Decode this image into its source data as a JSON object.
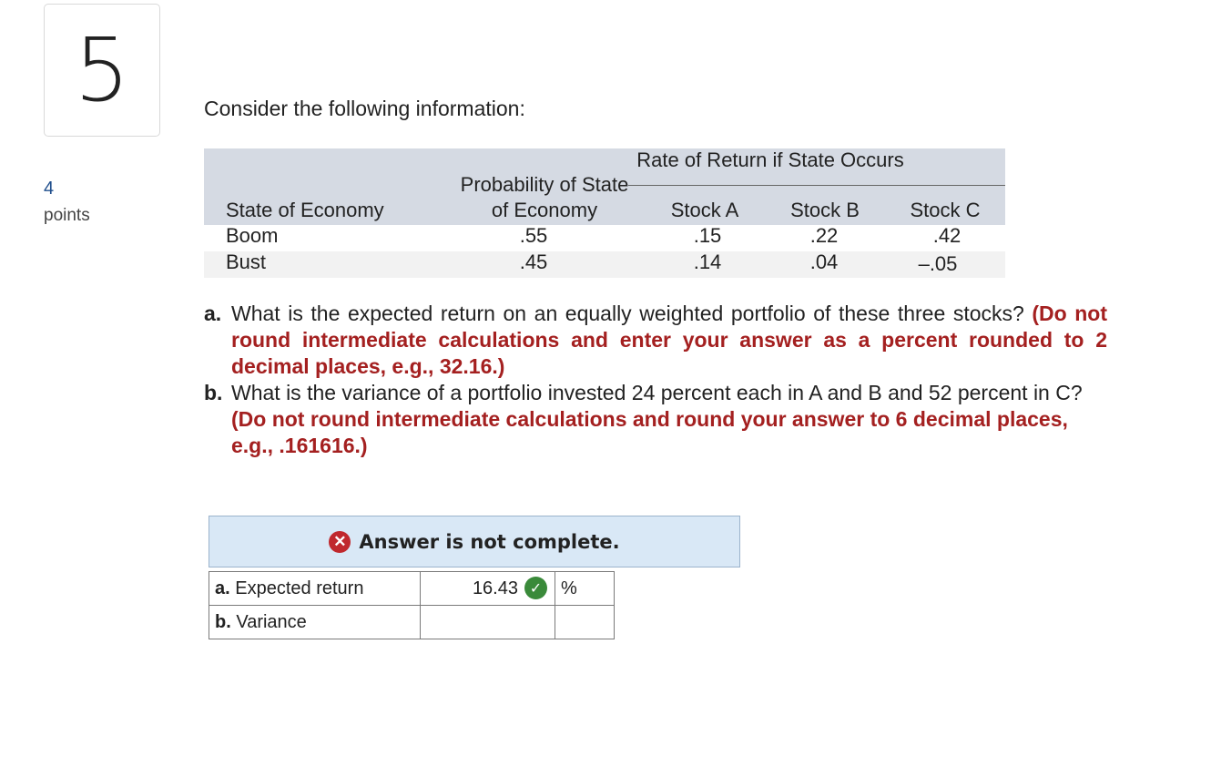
{
  "question": {
    "number": "5",
    "points_value": "4",
    "points_label": "points",
    "intro": "Consider the following information:"
  },
  "table": {
    "group_header": "Rate of Return if State Occurs",
    "col_state": "State of Economy",
    "col_prob_line1": "Probability of State",
    "col_prob_line2": "of Economy",
    "col_a": "Stock A",
    "col_b": "Stock B",
    "col_c": "Stock C",
    "rows": [
      {
        "state": "Boom",
        "prob": ".55",
        "a": ".15",
        "b": ".22",
        "c": ".42"
      },
      {
        "state": "Bust",
        "prob": ".45",
        "a": ".14",
        "b": ".04",
        "c": "–.05"
      }
    ]
  },
  "parts": {
    "a_letter": "a.",
    "a_text": "What is the expected return on an equally weighted portfolio of these three stocks?",
    "a_hint": "(Do not round intermediate calculations and enter your answer as a percent rounded to 2 decimal places, e.g., 32.16.)",
    "b_letter": "b.",
    "b_text": "What is the variance of a portfolio invested 24 percent each in A and B and 52 percent in C?",
    "b_hint": "(Do not round intermediate calculations and round your answer to 6 decimal places, e.g., .161616.)"
  },
  "status": {
    "icon": "x-circle-icon",
    "text": "Answer is not complete.",
    "color": "#c0282d"
  },
  "answers": {
    "expected_letter": "a.",
    "expected_label": "Expected return",
    "expected_value": "16.43",
    "expected_unit": "%",
    "expected_status_icon": "check-circle-icon",
    "variance_letter": "b.",
    "variance_label": "Variance",
    "variance_value": "",
    "variance_unit": ""
  }
}
